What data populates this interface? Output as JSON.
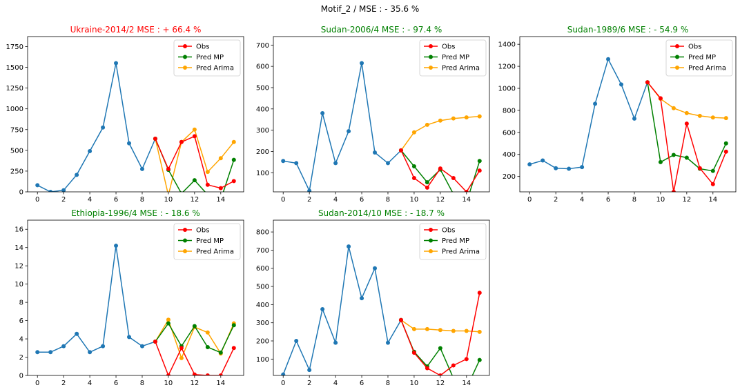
{
  "suptitle": "Motif_2 / MSE : - 35.6 %",
  "colors": {
    "history": "#1f77b4",
    "obs": "#ff0000",
    "pred_mp": "#008000",
    "pred_arima": "#ffa500"
  },
  "legend_labels": [
    "Obs",
    "Pred MP",
    "Pred Arima"
  ],
  "chart_data": [
    {
      "type": "line",
      "title": "Ukraine-2014/2 MSE : +  66.4 %",
      "title_color": "#ff0000",
      "xlim": [
        -0.75,
        15.75
      ],
      "ylim": [
        0,
        1870
      ],
      "xticks": [
        0,
        2,
        4,
        6,
        8,
        10,
        12,
        14
      ],
      "yticks": [
        0,
        250,
        500,
        750,
        1000,
        1250,
        1500,
        1750
      ],
      "legend": "upper right",
      "x_history": [
        0,
        1,
        2,
        3,
        4,
        5,
        6,
        7,
        8,
        9
      ],
      "history": [
        80,
        0,
        20,
        205,
        490,
        775,
        1550,
        585,
        275,
        640
      ],
      "x_forecast": [
        9,
        10,
        11,
        12,
        13,
        14,
        15
      ],
      "obs": [
        640,
        275,
        600,
        670,
        85,
        45,
        130
      ],
      "pred_mp": [
        640,
        265,
        -20,
        140,
        -35,
        -95,
        385
      ],
      "pred_arima": [
        640,
        -40,
        600,
        750,
        240,
        405,
        600
      ]
    },
    {
      "type": "line",
      "title": "Sudan-2006/4 MSE : -  97.4 %",
      "title_color": "#008000",
      "xlim": [
        -0.75,
        15.75
      ],
      "ylim": [
        10,
        740
      ],
      "xticks": [
        0,
        2,
        4,
        6,
        8,
        10,
        12,
        14
      ],
      "yticks": [
        100,
        200,
        300,
        400,
        500,
        600,
        700
      ],
      "legend": "upper right",
      "x_history": [
        0,
        1,
        2,
        3,
        4,
        5,
        6,
        7,
        8,
        9
      ],
      "history": [
        155,
        145,
        15,
        380,
        145,
        295,
        615,
        195,
        145,
        205
      ],
      "x_forecast": [
        9,
        10,
        11,
        12,
        13,
        14,
        15
      ],
      "obs": [
        205,
        75,
        30,
        120,
        75,
        10,
        110
      ],
      "pred_mp": [
        205,
        130,
        55,
        115,
        0,
        -40,
        155
      ],
      "pred_arima": [
        205,
        290,
        325,
        345,
        355,
        360,
        365
      ]
    },
    {
      "type": "line",
      "title": "Sudan-1989/6 MSE : -  54.9 %",
      "title_color": "#008000",
      "xlim": [
        -0.75,
        15.75
      ],
      "ylim": [
        60,
        1470
      ],
      "xticks": [
        0,
        2,
        4,
        6,
        8,
        10,
        12,
        14
      ],
      "yticks": [
        200,
        400,
        600,
        800,
        1000,
        1200,
        1400
      ],
      "legend": "upper right",
      "x_history": [
        0,
        1,
        2,
        3,
        4,
        5,
        6,
        7,
        8,
        9
      ],
      "history": [
        310,
        345,
        275,
        270,
        285,
        860,
        1265,
        1035,
        725,
        1055
      ],
      "x_forecast": [
        9,
        10,
        11,
        12,
        13,
        14,
        15
      ],
      "obs": [
        1055,
        910,
        60,
        680,
        275,
        130,
        425
      ],
      "pred_mp": [
        1055,
        330,
        395,
        370,
        270,
        250,
        500
      ],
      "pred_arima": [
        1055,
        905,
        820,
        775,
        750,
        735,
        730
      ]
    },
    {
      "type": "line",
      "title": "Ethiopia-1996/4 MSE : -  18.6 %",
      "title_color": "#008000",
      "xlim": [
        -0.75,
        15.75
      ],
      "ylim": [
        0,
        17
      ],
      "xticks": [
        0,
        2,
        4,
        6,
        8,
        10,
        12,
        14
      ],
      "yticks": [
        0,
        2,
        4,
        6,
        8,
        10,
        12,
        14,
        16
      ],
      "legend": "upper right",
      "x_history": [
        0,
        1,
        2,
        3,
        4,
        5,
        6,
        7,
        8,
        9
      ],
      "history": [
        2.55,
        2.55,
        3.2,
        4.55,
        2.55,
        3.2,
        14.2,
        4.2,
        3.2,
        3.7
      ],
      "x_forecast": [
        9,
        10,
        11,
        12,
        13,
        14,
        15
      ],
      "obs": [
        3.7,
        0.0,
        3.0,
        0.1,
        0.0,
        0.0,
        3.0
      ],
      "pred_mp": [
        3.7,
        5.7,
        3.2,
        5.4,
        3.1,
        2.5,
        5.5
      ],
      "pred_arima": [
        3.7,
        6.1,
        1.9,
        5.3,
        4.7,
        2.4,
        5.7
      ]
    },
    {
      "type": "line",
      "title": "Sudan-2014/10 MSE : -  18.7 %",
      "title_color": "#008000",
      "xlim": [
        -0.75,
        15.75
      ],
      "ylim": [
        10,
        865
      ],
      "xticks": [
        0,
        2,
        4,
        6,
        8,
        10,
        12,
        14
      ],
      "yticks": [
        100,
        200,
        300,
        400,
        500,
        600,
        700,
        800
      ],
      "legend": "upper right",
      "x_history": [
        0,
        1,
        2,
        3,
        4,
        5,
        6,
        7,
        8,
        9
      ],
      "history": [
        15,
        200,
        40,
        375,
        190,
        720,
        435,
        600,
        190,
        315
      ],
      "x_forecast": [
        9,
        10,
        11,
        12,
        13,
        14,
        15
      ],
      "obs": [
        315,
        135,
        50,
        10,
        65,
        100,
        465
      ],
      "pred_mp": [
        315,
        140,
        60,
        160,
        -5,
        -60,
        95
      ],
      "pred_arima": [
        315,
        265,
        265,
        260,
        255,
        255,
        250
      ]
    }
  ]
}
